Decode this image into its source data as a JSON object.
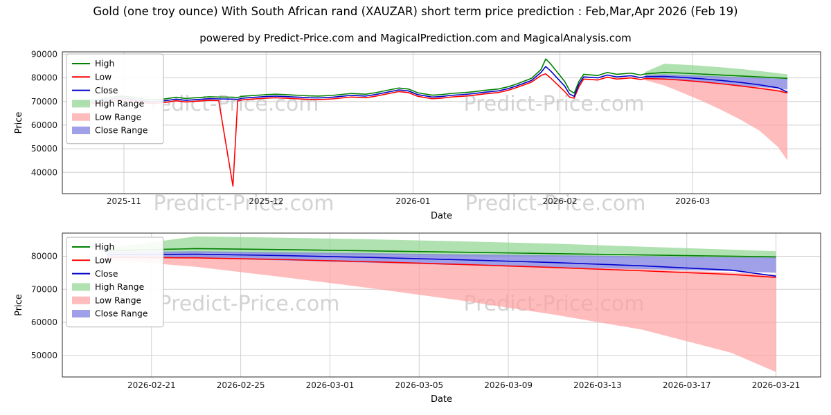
{
  "page": {
    "title": "Gold (one troy ounce) With South African rand (XAUZAR) short term price prediction : Feb,Mar,Apr 2026 (Feb 19)",
    "subtitle": "powered by Predict-Price.com and MagicalPrediction.com and MagicalAnalysis.com",
    "watermark": "Predict-Price.com"
  },
  "colors": {
    "lines": {
      "high": "#008000",
      "low": "#ff0000",
      "close": "#0000cc"
    },
    "bands": {
      "high_range": {
        "fill": "#8fd48f",
        "opacity": 0.7
      },
      "low_range": {
        "fill": "#ff9f9f",
        "opacity": 0.7
      },
      "close_range": {
        "fill": "#8080e0",
        "opacity": 0.75
      }
    },
    "grid": "#cfcfcf",
    "frame": "#2b2b2b",
    "watermark": "#c8c8c8",
    "tick_text": "#1a1a1a"
  },
  "legend": {
    "entries": [
      {
        "label": "High",
        "swatch": "line",
        "color": "high"
      },
      {
        "label": "Low",
        "swatch": "line",
        "color": "low"
      },
      {
        "label": "Close",
        "swatch": "line",
        "color": "close"
      },
      {
        "label": "High Range",
        "swatch": "patch",
        "color": "high_range"
      },
      {
        "label": "Low Range",
        "swatch": "patch",
        "color": "low_range"
      },
      {
        "label": "Close Range",
        "swatch": "patch",
        "color": "close_range"
      }
    ]
  },
  "chart_data": [
    {
      "type": "line",
      "name": "history-and-forecast",
      "xlabel": "Date",
      "ylabel": "Price",
      "xlim": [
        "2025-10-19",
        "2026-03-28"
      ],
      "ylim": [
        31000,
        91000
      ],
      "yticks": [
        40000,
        50000,
        60000,
        70000,
        80000,
        90000
      ],
      "xticks": [
        {
          "d": "2025-11-01",
          "label": "2025-11"
        },
        {
          "d": "2025-12-01",
          "label": "2025-12"
        },
        {
          "d": "2026-01-01",
          "label": "2026-01"
        },
        {
          "d": "2026-02-01",
          "label": "2026-02"
        },
        {
          "d": "2026-03-01",
          "label": "2026-03"
        }
      ],
      "dates": [
        "2025-10-22",
        "2025-10-24",
        "2025-10-27",
        "2025-10-29",
        "2025-10-31",
        "2025-11-03",
        "2025-11-05",
        "2025-11-07",
        "2025-11-10",
        "2025-11-12",
        "2025-11-14",
        "2025-11-17",
        "2025-11-19",
        "2025-11-21",
        "2025-11-24",
        "2025-11-25",
        "2025-11-26",
        "2025-11-28",
        "2025-12-01",
        "2025-12-03",
        "2025-12-05",
        "2025-12-08",
        "2025-12-10",
        "2025-12-12",
        "2025-12-15",
        "2025-12-17",
        "2025-12-19",
        "2025-12-22",
        "2025-12-24",
        "2025-12-26",
        "2025-12-29",
        "2025-12-31",
        "2026-01-02",
        "2026-01-05",
        "2026-01-07",
        "2026-01-09",
        "2026-01-12",
        "2026-01-14",
        "2026-01-16",
        "2026-01-19",
        "2026-01-21",
        "2026-01-23",
        "2026-01-26",
        "2026-01-28",
        "2026-01-29",
        "2026-01-30",
        "2026-02-02",
        "2026-02-03",
        "2026-02-04",
        "2026-02-05",
        "2026-02-06",
        "2026-02-09",
        "2026-02-11",
        "2026-02-13",
        "2026-02-16",
        "2026-02-18",
        "2026-02-19",
        "2026-02-23",
        "2026-02-27",
        "2026-03-03",
        "2026-03-07",
        "2026-03-11",
        "2026-03-15",
        "2026-03-19",
        "2026-03-21"
      ],
      "series": [
        {
          "name": "High",
          "color": "high",
          "values": [
            70200,
            70400,
            70800,
            71600,
            72300,
            71900,
            71100,
            70600,
            71200,
            71800,
            71300,
            71700,
            72000,
            71900,
            71800,
            71700,
            72200,
            72500,
            72900,
            73100,
            72900,
            72600,
            72400,
            72300,
            72600,
            73000,
            73400,
            73100,
            73700,
            74500,
            75700,
            75300,
            73700,
            72700,
            72900,
            73400,
            73800,
            74200,
            74700,
            75300,
            76200,
            77500,
            79800,
            83500,
            88000,
            86000,
            78500,
            74800,
            73500,
            78500,
            81500,
            81000,
            82300,
            81500,
            82000,
            81200,
            81700,
            82300,
            82000,
            81600,
            81200,
            80800,
            80400,
            80000,
            79800
          ]
        },
        {
          "name": "Low",
          "color": "low",
          "values": [
            68700,
            68900,
            69300,
            70100,
            70800,
            70400,
            69600,
            69100,
            69700,
            70300,
            69800,
            70200,
            70500,
            70400,
            34200,
            70200,
            70700,
            71000,
            71400,
            71600,
            71400,
            71100,
            70900,
            70800,
            71100,
            71500,
            71900,
            71600,
            72200,
            73000,
            74200,
            73800,
            72200,
            71200,
            71400,
            71900,
            72300,
            72700,
            73200,
            73800,
            74700,
            76000,
            78200,
            81000,
            81700,
            80000,
            74200,
            71900,
            71400,
            76200,
            79500,
            79100,
            80300,
            79500,
            80000,
            79300,
            79700,
            79500,
            79000,
            78300,
            77500,
            76600,
            75600,
            74500,
            73600
          ]
        },
        {
          "name": "Close",
          "color": "close",
          "values": [
            69400,
            69600,
            70000,
            70800,
            71500,
            71100,
            70300,
            69800,
            70400,
            71000,
            70500,
            70900,
            71200,
            71100,
            71000,
            70900,
            71400,
            71700,
            72100,
            72300,
            72100,
            71800,
            71600,
            71500,
            71800,
            72200,
            72600,
            72300,
            72900,
            73700,
            74900,
            74500,
            72900,
            71900,
            72100,
            72600,
            73000,
            73400,
            73900,
            74500,
            75400,
            76700,
            78900,
            82300,
            84800,
            83000,
            76500,
            73200,
            72200,
            77300,
            80400,
            80000,
            81200,
            80400,
            80900,
            80100,
            80500,
            80600,
            80200,
            79600,
            78900,
            78100,
            77100,
            75800,
            74000
          ]
        }
      ],
      "bands": [
        {
          "name": "High Range",
          "color": "high_range",
          "dates": [
            "2026-02-19",
            "2026-02-23",
            "2026-02-27",
            "2026-03-03",
            "2026-03-07",
            "2026-03-11",
            "2026-03-15",
            "2026-03-19",
            "2026-03-21"
          ],
          "upper": [
            82500,
            86000,
            85600,
            85100,
            84500,
            83800,
            82900,
            82000,
            81500
          ],
          "lower": [
            80800,
            81000,
            80700,
            80400,
            80100,
            79900,
            79700,
            79500,
            79400
          ]
        },
        {
          "name": "Low Range",
          "color": "low_range",
          "dates": [
            "2026-02-19",
            "2026-02-23",
            "2026-02-27",
            "2026-03-03",
            "2026-03-07",
            "2026-03-11",
            "2026-03-15",
            "2026-03-19",
            "2026-03-21"
          ],
          "upper": [
            80000,
            79600,
            79100,
            78500,
            77800,
            77000,
            76100,
            75100,
            74400
          ],
          "lower": [
            79000,
            76800,
            73600,
            70200,
            66500,
            62400,
            57800,
            50800,
            45000
          ]
        },
        {
          "name": "Close Range",
          "color": "close_range",
          "dates": [
            "2026-02-19",
            "2026-02-23",
            "2026-02-27",
            "2026-03-03",
            "2026-03-07",
            "2026-03-11",
            "2026-03-15",
            "2026-03-19",
            "2026-03-21"
          ],
          "upper": [
            81300,
            81500,
            81200,
            80900,
            80600,
            80300,
            80000,
            79700,
            79600
          ],
          "lower": [
            79900,
            79400,
            78700,
            78000,
            77300,
            76700,
            76100,
            75500,
            75000
          ]
        }
      ]
    },
    {
      "type": "line",
      "name": "forecast-detail",
      "xlabel": "Date",
      "ylabel": "Price",
      "xlim": [
        "2026-02-17",
        "2026-03-23"
      ],
      "ylim": [
        43500,
        87000
      ],
      "yticks": [
        50000,
        60000,
        70000,
        80000
      ],
      "xticks": [
        {
          "d": "2026-02-21",
          "label": "2026-02-21"
        },
        {
          "d": "2026-02-25",
          "label": "2026-02-25"
        },
        {
          "d": "2026-03-01",
          "label": "2026-03-01"
        },
        {
          "d": "2026-03-05",
          "label": "2026-03-05"
        },
        {
          "d": "2026-03-09",
          "label": "2026-03-09"
        },
        {
          "d": "2026-03-13",
          "label": "2026-03-13"
        },
        {
          "d": "2026-03-17",
          "label": "2026-03-17"
        },
        {
          "d": "2026-03-21",
          "label": "2026-03-21"
        }
      ],
      "dates": [
        "2026-02-19",
        "2026-02-23",
        "2026-02-27",
        "2026-03-03",
        "2026-03-07",
        "2026-03-11",
        "2026-03-15",
        "2026-03-19",
        "2026-03-21"
      ],
      "series": [
        {
          "name": "High",
          "color": "high",
          "values": [
            81700,
            82300,
            82000,
            81600,
            81200,
            80800,
            80400,
            80000,
            79800
          ]
        },
        {
          "name": "Low",
          "color": "low",
          "values": [
            79700,
            79500,
            79000,
            78300,
            77500,
            76600,
            75600,
            74500,
            73600
          ]
        },
        {
          "name": "Close",
          "color": "close",
          "values": [
            80500,
            80600,
            80200,
            79600,
            78900,
            78100,
            77100,
            75800,
            74000
          ]
        }
      ],
      "bands": [
        {
          "name": "High Range",
          "color": "high_range",
          "dates": [
            "2026-02-19",
            "2026-02-23",
            "2026-02-27",
            "2026-03-03",
            "2026-03-07",
            "2026-03-11",
            "2026-03-15",
            "2026-03-19",
            "2026-03-21"
          ],
          "upper": [
            82500,
            86000,
            85600,
            85100,
            84500,
            83800,
            82900,
            82000,
            81500
          ],
          "lower": [
            80800,
            81000,
            80700,
            80400,
            80100,
            79900,
            79700,
            79500,
            79400
          ]
        },
        {
          "name": "Low Range",
          "color": "low_range",
          "dates": [
            "2026-02-19",
            "2026-02-23",
            "2026-02-27",
            "2026-03-03",
            "2026-03-07",
            "2026-03-11",
            "2026-03-15",
            "2026-03-19",
            "2026-03-21"
          ],
          "upper": [
            80000,
            79600,
            79100,
            78500,
            77800,
            77000,
            76100,
            75100,
            74400
          ],
          "lower": [
            79000,
            76800,
            73600,
            70200,
            66500,
            62400,
            57800,
            50800,
            45000
          ]
        },
        {
          "name": "Close Range",
          "color": "close_range",
          "dates": [
            "2026-02-19",
            "2026-02-23",
            "2026-02-27",
            "2026-03-03",
            "2026-03-07",
            "2026-03-11",
            "2026-03-15",
            "2026-03-19",
            "2026-03-21"
          ],
          "upper": [
            81300,
            81500,
            81200,
            80900,
            80600,
            80300,
            80000,
            79700,
            79600
          ],
          "lower": [
            79900,
            79400,
            78700,
            78000,
            77300,
            76700,
            76100,
            75500,
            75000
          ]
        }
      ]
    }
  ]
}
